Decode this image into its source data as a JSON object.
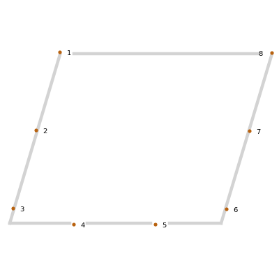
{
  "diagram": {
    "background": "#ffffff",
    "edge_color": "#d3d3d3",
    "point_color": "#b8620f",
    "label_color": "#000000",
    "points": [
      {
        "label": "1"
      },
      {
        "label": "2"
      },
      {
        "label": "3"
      },
      {
        "label": "4"
      },
      {
        "label": "5"
      },
      {
        "label": "6"
      },
      {
        "label": "7"
      },
      {
        "label": "8"
      }
    ]
  }
}
